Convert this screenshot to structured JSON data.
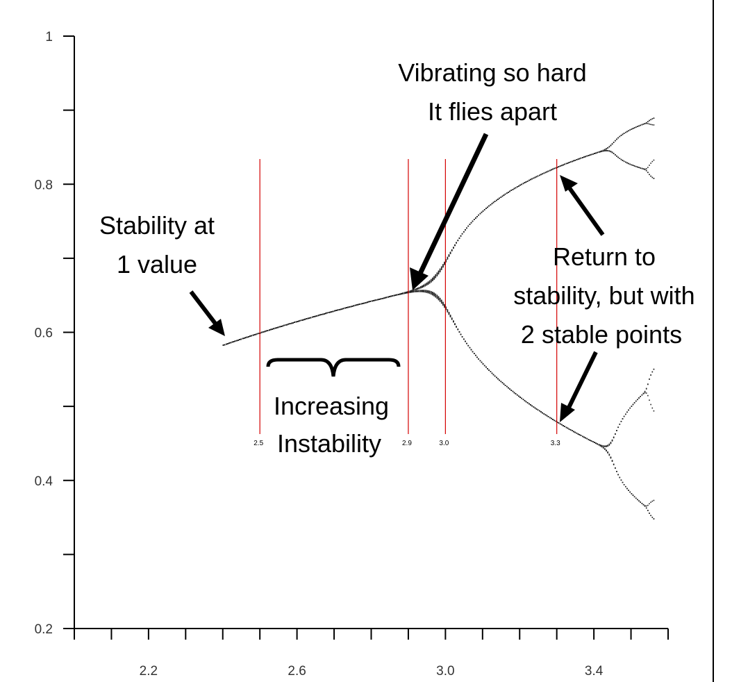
{
  "chart_data": {
    "type": "scatter",
    "title": "",
    "xlabel": "",
    "ylabel": "",
    "xlim": [
      2.0,
      3.6
    ],
    "ylim": [
      0.2,
      1.0
    ],
    "x_ticks": [
      2.2,
      2.6,
      3.0,
      3.4
    ],
    "x_tick_labels": [
      "2.2",
      "2.6",
      "3.0",
      "3.4"
    ],
    "y_ticks": [
      0.2,
      0.4,
      0.6,
      0.8,
      1.0
    ],
    "y_tick_labels": [
      "0.2",
      "0.4",
      "0.6",
      "0.8",
      "1"
    ],
    "grid": false,
    "bifurcation": {
      "r_start": 2.4,
      "r_end": 3.56,
      "r_step": 0.004,
      "iterations_skip": 40,
      "iterations_plot": 12,
      "point_color": "#222222"
    },
    "vertical_lines": [
      {
        "x": 2.5,
        "label": "2.5"
      },
      {
        "x": 2.9,
        "label": "2.9"
      },
      {
        "x": 3.0,
        "label": "3.0"
      },
      {
        "x": 3.3,
        "label": "3.3"
      }
    ],
    "vertical_line_color": "#d40000",
    "annotations": {
      "stability_one": [
        "Stability at",
        "1 value"
      ],
      "increasing": [
        "Increasing",
        "Instability"
      ],
      "vibrating": [
        "Vibrating so hard",
        "It flies apart"
      ],
      "return_stability": [
        "Return to",
        "stability, but with",
        "2 stable points"
      ]
    }
  }
}
